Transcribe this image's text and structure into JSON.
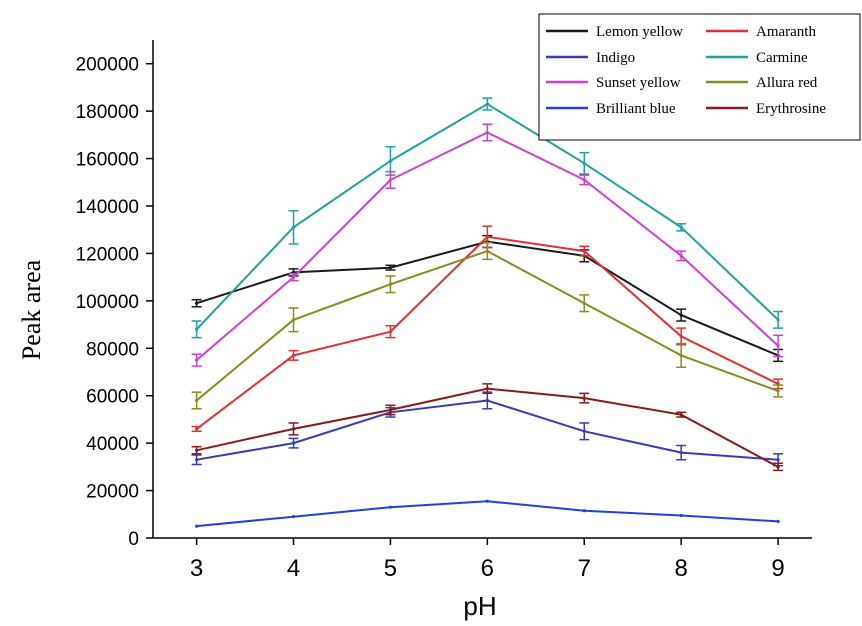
{
  "chart_data": {
    "type": "line",
    "title": "",
    "xlabel": "pH",
    "ylabel": "Peak area",
    "x": [
      3,
      4,
      5,
      6,
      7,
      8,
      9
    ],
    "xlim": [
      2.55,
      9.35
    ],
    "ylim": [
      0,
      210000
    ],
    "yticks": [
      0,
      20000,
      40000,
      60000,
      80000,
      100000,
      120000,
      140000,
      160000,
      180000,
      200000
    ],
    "grid": false,
    "legend_position": "top-right",
    "series": [
      {
        "name": "Lemon yellow",
        "color": "#1a1a1a",
        "values": [
          99000,
          112000,
          114000,
          125000,
          119000,
          94000,
          77000
        ],
        "errors": [
          1500,
          1500,
          1000,
          2500,
          2500,
          2500,
          2500
        ]
      },
      {
        "name": "Amaranth",
        "color": "#e03030",
        "values": [
          46000,
          77000,
          87000,
          127000,
          121000,
          85000,
          65000
        ],
        "errors": [
          1000,
          2000,
          2500,
          4500,
          2000,
          3500,
          2000
        ]
      },
      {
        "name": "Indigo",
        "color": "#3a3ab8",
        "values": [
          33000,
          40000,
          53000,
          58000,
          45000,
          36000,
          33000
        ],
        "errors": [
          2000,
          2000,
          2000,
          3500,
          3500,
          3000,
          2500
        ]
      },
      {
        "name": "Carmine",
        "color": "#20a0a0",
        "values": [
          88000,
          131000,
          159000,
          183000,
          158000,
          131000,
          92000
        ],
        "errors": [
          3500,
          7000,
          6000,
          2500,
          4500,
          1500,
          3500
        ]
      },
      {
        "name": "Sunset yellow",
        "color": "#d040d0",
        "values": [
          75000,
          110000,
          151000,
          171000,
          151000,
          119000,
          81000
        ],
        "errors": [
          2500,
          1500,
          3500,
          3500,
          2000,
          2000,
          4500
        ]
      },
      {
        "name": "Allura red",
        "color": "#8a8a20",
        "values": [
          58000,
          92000,
          107000,
          121000,
          99000,
          77000,
          62000
        ],
        "errors": [
          3500,
          5000,
          3500,
          3500,
          3500,
          5000,
          2500
        ]
      },
      {
        "name": "Brilliant blue",
        "color": "#2040e0",
        "values": [
          5000,
          9000,
          13000,
          15500,
          11500,
          9500,
          7000
        ],
        "errors": [
          0,
          0,
          0,
          0,
          0,
          0,
          0
        ]
      },
      {
        "name": "Erythrosine",
        "color": "#8a1a1a",
        "values": [
          37000,
          46000,
          54000,
          63000,
          59000,
          52000,
          30000
        ],
        "errors": [
          1500,
          2500,
          2000,
          2000,
          2000,
          1000,
          1500
        ]
      }
    ]
  }
}
